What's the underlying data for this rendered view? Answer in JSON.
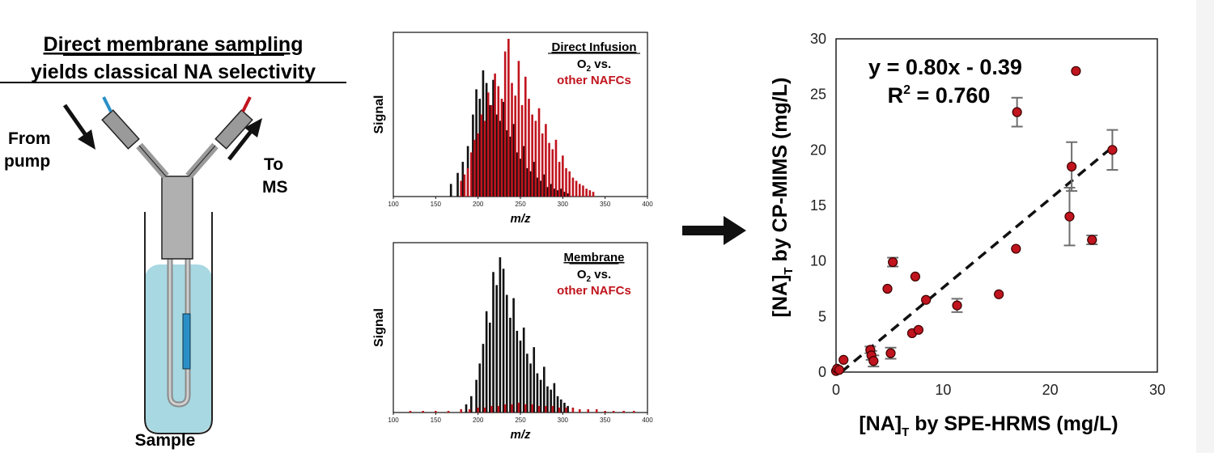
{
  "colors": {
    "red": "#c0141e",
    "black": "#111111",
    "water": "#a8d8e2",
    "water_dark": "#7cc0d0",
    "probe_blue": "#2a8fc7",
    "gray_body": "#b0b0b0",
    "error_bar": "#6e6e6e"
  },
  "left_panel": {
    "title_line1": "Direct membrane sampling",
    "title_line2": "yields classical NA selectivity",
    "label_from_line1": "From",
    "label_from_line2": "pump",
    "label_to_line1": "To",
    "label_to_line2": "MS",
    "label_sample": "Sample"
  },
  "arrow_icon": "right-arrow-icon",
  "chart_data": [
    {
      "type": "bar",
      "title": "Direct Infusion",
      "legend_line1_main": "O",
      "legend_line1_sub": "2",
      "legend_line1_rest": " vs.",
      "legend_line2": "other NAFCs",
      "ylabel": "Signal",
      "xlabel": "m/z",
      "xlim": [
        100,
        400
      ],
      "xticks": [
        "100",
        "150",
        "200",
        "250",
        "300",
        "350",
        "400"
      ],
      "series": [
        {
          "name": "O2",
          "color": "#111111",
          "x": [
            168,
            176,
            182,
            188,
            194,
            198,
            202,
            206,
            210,
            214,
            218,
            222,
            226,
            230,
            234,
            238,
            242,
            246,
            250,
            254,
            258,
            262,
            266,
            270,
            274,
            278,
            282,
            286,
            290,
            294,
            298,
            302,
            306
          ],
          "values": [
            0.08,
            0.15,
            0.22,
            0.32,
            0.52,
            0.68,
            0.62,
            0.8,
            0.72,
            0.58,
            0.74,
            0.52,
            0.48,
            0.6,
            0.42,
            0.38,
            0.46,
            0.28,
            0.24,
            0.32,
            0.18,
            0.16,
            0.22,
            0.12,
            0.1,
            0.14,
            0.06,
            0.08,
            0.05,
            0.04,
            0.05,
            0.03,
            0.02
          ]
        },
        {
          "name": "other NAFCs",
          "color": "#c0141e",
          "x": [
            180,
            184,
            188,
            192,
            196,
            200,
            204,
            208,
            212,
            216,
            220,
            224,
            228,
            232,
            236,
            240,
            244,
            248,
            252,
            256,
            260,
            264,
            268,
            272,
            276,
            280,
            284,
            288,
            292,
            296,
            300,
            304,
            308,
            312,
            316,
            320,
            324,
            328,
            332,
            336
          ],
          "values": [
            0.1,
            0.14,
            0.18,
            0.28,
            0.36,
            0.4,
            0.52,
            0.48,
            0.66,
            0.58,
            0.78,
            0.7,
            0.62,
            0.92,
            1.0,
            0.72,
            0.64,
            0.86,
            0.58,
            0.76,
            0.62,
            0.52,
            0.48,
            0.56,
            0.4,
            0.46,
            0.34,
            0.3,
            0.36,
            0.22,
            0.26,
            0.18,
            0.16,
            0.12,
            0.1,
            0.08,
            0.07,
            0.05,
            0.04,
            0.03
          ]
        }
      ]
    },
    {
      "type": "bar",
      "title": "Membrane",
      "legend_line1_main": "O",
      "legend_line1_sub": "2",
      "legend_line1_rest": " vs.",
      "legend_line2": "other NAFCs",
      "ylabel": "Signal",
      "xlabel": "m/z",
      "xlim": [
        100,
        400
      ],
      "xticks": [
        "100",
        "150",
        "200",
        "250",
        "300",
        "350",
        "400"
      ],
      "series": [
        {
          "name": "O2",
          "color": "#111111",
          "x": [
            186,
            192,
            198,
            202,
            206,
            210,
            214,
            218,
            222,
            226,
            230,
            234,
            238,
            242,
            246,
            250,
            254,
            258,
            262,
            266,
            270,
            274,
            278,
            282,
            286,
            290,
            294,
            298,
            302,
            306
          ],
          "values": [
            0.05,
            0.1,
            0.2,
            0.3,
            0.42,
            0.62,
            0.55,
            0.86,
            0.78,
            0.95,
            0.88,
            0.72,
            0.58,
            0.7,
            0.5,
            0.44,
            0.52,
            0.36,
            0.3,
            0.4,
            0.24,
            0.2,
            0.28,
            0.16,
            0.14,
            0.18,
            0.1,
            0.08,
            0.06,
            0.04
          ]
        },
        {
          "name": "other NAFCs",
          "color": "#c0141e",
          "x": [
            120,
            135,
            150,
            165,
            180,
            190,
            200,
            208,
            216,
            224,
            232,
            240,
            248,
            256,
            264,
            272,
            280,
            288,
            296,
            304,
            312,
            320,
            330,
            340,
            350,
            360,
            372,
            384
          ],
          "values": [
            0.01,
            0.01,
            0.01,
            0.01,
            0.02,
            0.02,
            0.03,
            0.03,
            0.04,
            0.04,
            0.05,
            0.05,
            0.06,
            0.05,
            0.05,
            0.04,
            0.04,
            0.04,
            0.03,
            0.03,
            0.03,
            0.02,
            0.02,
            0.02,
            0.01,
            0.01,
            0.01,
            0.01
          ]
        }
      ]
    },
    {
      "type": "scatter",
      "equation": "y = 0.80x - 0.39",
      "r2_main": "R",
      "r2_sup": "2",
      "r2_rest": " = 0.760",
      "xlabel_pre": "[NA]",
      "xlabel_sub": "T",
      "xlabel_post": " by SPE-HRMS (mg/L)",
      "ylabel_pre": "[NA]",
      "ylabel_sub": "T",
      "ylabel_post": " by CP-MIMS (mg/L)",
      "xlim": [
        0,
        30
      ],
      "ylim": [
        0,
        30
      ],
      "xticks": [
        "0",
        "10",
        "20",
        "30"
      ],
      "yticks": [
        "0",
        "5",
        "10",
        "15",
        "20",
        "25",
        "30"
      ],
      "fit": {
        "slope": 0.8,
        "intercept": -0.39
      },
      "points": [
        {
          "x": 0.0,
          "y": 0.1,
          "err": 0
        },
        {
          "x": 0.1,
          "y": 0.3,
          "err": 0
        },
        {
          "x": 0.3,
          "y": 0.2,
          "err": 0
        },
        {
          "x": 0.7,
          "y": 1.1,
          "err": 0
        },
        {
          "x": 3.2,
          "y": 2.0,
          "err": 0.3
        },
        {
          "x": 3.3,
          "y": 1.5,
          "err": 0.4
        },
        {
          "x": 3.5,
          "y": 1.0,
          "err": 0.5
        },
        {
          "x": 4.8,
          "y": 7.5,
          "err": 0
        },
        {
          "x": 5.1,
          "y": 1.7,
          "err": 0.5
        },
        {
          "x": 5.3,
          "y": 9.9,
          "err": 0.4
        },
        {
          "x": 7.1,
          "y": 3.5,
          "err": 0
        },
        {
          "x": 7.4,
          "y": 8.6,
          "err": 0
        },
        {
          "x": 7.7,
          "y": 3.8,
          "err": 0
        },
        {
          "x": 8.4,
          "y": 6.5,
          "err": 0
        },
        {
          "x": 11.3,
          "y": 6.0,
          "err": 0.6
        },
        {
          "x": 15.2,
          "y": 7.0,
          "err": 0
        },
        {
          "x": 16.8,
          "y": 11.1,
          "err": 0
        },
        {
          "x": 16.9,
          "y": 23.4,
          "err": 1.3
        },
        {
          "x": 21.8,
          "y": 14.0,
          "err": 2.6
        },
        {
          "x": 22.0,
          "y": 18.5,
          "err": 2.2
        },
        {
          "x": 22.4,
          "y": 27.1,
          "err": 0
        },
        {
          "x": 23.9,
          "y": 11.9,
          "err": 0.4
        },
        {
          "x": 25.8,
          "y": 20.0,
          "err": 1.8
        }
      ]
    }
  ]
}
